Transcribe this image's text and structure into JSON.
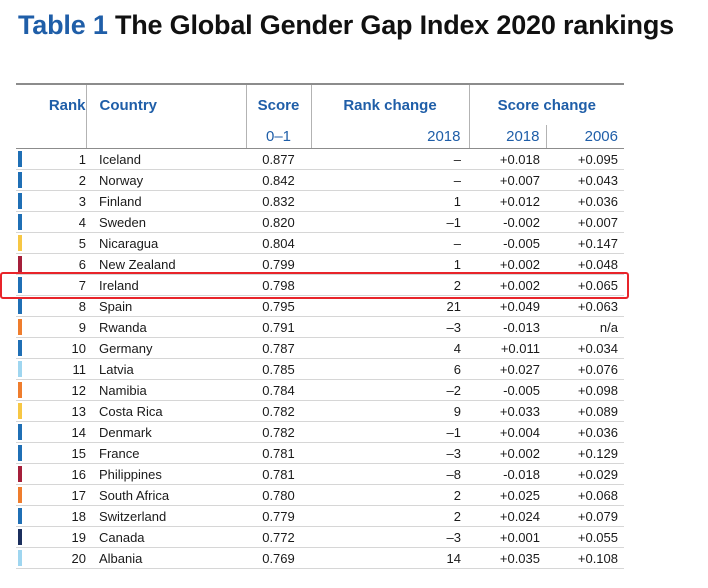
{
  "title": {
    "number": "Table 1",
    "text": "The Global Gender Gap Index 2020 rankings"
  },
  "headers": {
    "rank": "Rank",
    "country": "Country",
    "score": "Score",
    "rank_change": "Rank change",
    "score_change": "Score change",
    "score_sub": "0–1",
    "rank_change_sub": "2018",
    "score_change_sub_1": "2018",
    "score_change_sub_2": "2006"
  },
  "region_colors": {
    "western_europe": "#1f6fb5",
    "latin_america": "#f7c744",
    "east_asia_pacific": "#a51f3a",
    "sub_saharan_africa": "#ef7d2d",
    "eastern_europe_central_asia": "#9fd6f0",
    "north_america": "#1b2f5e"
  },
  "rows": [
    {
      "rank": "1",
      "country": "Iceland",
      "score": "0.877",
      "rank_change": "–",
      "sc2018": "+0.018",
      "sc2006": "+0.095",
      "region": "western_europe"
    },
    {
      "rank": "2",
      "country": "Norway",
      "score": "0.842",
      "rank_change": "–",
      "sc2018": "+0.007",
      "sc2006": "+0.043",
      "region": "western_europe"
    },
    {
      "rank": "3",
      "country": "Finland",
      "score": "0.832",
      "rank_change": "1",
      "sc2018": "+0.012",
      "sc2006": "+0.036",
      "region": "western_europe"
    },
    {
      "rank": "4",
      "country": "Sweden",
      "score": "0.820",
      "rank_change": "–1",
      "sc2018": "-0.002",
      "sc2006": "+0.007",
      "region": "western_europe"
    },
    {
      "rank": "5",
      "country": "Nicaragua",
      "score": "0.804",
      "rank_change": "–",
      "sc2018": "-0.005",
      "sc2006": "+0.147",
      "region": "latin_america"
    },
    {
      "rank": "6",
      "country": "New Zealand",
      "score": "0.799",
      "rank_change": "1",
      "sc2018": "+0.002",
      "sc2006": "+0.048",
      "region": "east_asia_pacific"
    },
    {
      "rank": "7",
      "country": "Ireland",
      "score": "0.798",
      "rank_change": "2",
      "sc2018": "+0.002",
      "sc2006": "+0.065",
      "region": "western_europe"
    },
    {
      "rank": "8",
      "country": "Spain",
      "score": "0.795",
      "rank_change": "21",
      "sc2018": "+0.049",
      "sc2006": "+0.063",
      "region": "western_europe"
    },
    {
      "rank": "9",
      "country": "Rwanda",
      "score": "0.791",
      "rank_change": "–3",
      "sc2018": "-0.013",
      "sc2006": "n/a",
      "region": "sub_saharan_africa"
    },
    {
      "rank": "10",
      "country": "Germany",
      "score": "0.787",
      "rank_change": "4",
      "sc2018": "+0.011",
      "sc2006": "+0.034",
      "region": "western_europe"
    },
    {
      "rank": "11",
      "country": "Latvia",
      "score": "0.785",
      "rank_change": "6",
      "sc2018": "+0.027",
      "sc2006": "+0.076",
      "region": "eastern_europe_central_asia"
    },
    {
      "rank": "12",
      "country": "Namibia",
      "score": "0.784",
      "rank_change": "–2",
      "sc2018": "-0.005",
      "sc2006": "+0.098",
      "region": "sub_saharan_africa"
    },
    {
      "rank": "13",
      "country": "Costa Rica",
      "score": "0.782",
      "rank_change": "9",
      "sc2018": "+0.033",
      "sc2006": "+0.089",
      "region": "latin_america"
    },
    {
      "rank": "14",
      "country": "Denmark",
      "score": "0.782",
      "rank_change": "–1",
      "sc2018": "+0.004",
      "sc2006": "+0.036",
      "region": "western_europe"
    },
    {
      "rank": "15",
      "country": "France",
      "score": "0.781",
      "rank_change": "–3",
      "sc2018": "+0.002",
      "sc2006": "+0.129",
      "region": "western_europe"
    },
    {
      "rank": "16",
      "country": "Philippines",
      "score": "0.781",
      "rank_change": "–8",
      "sc2018": "-0.018",
      "sc2006": "+0.029",
      "region": "east_asia_pacific"
    },
    {
      "rank": "17",
      "country": "South Africa",
      "score": "0.780",
      "rank_change": "2",
      "sc2018": "+0.025",
      "sc2006": "+0.068",
      "region": "sub_saharan_africa"
    },
    {
      "rank": "18",
      "country": "Switzerland",
      "score": "0.779",
      "rank_change": "2",
      "sc2018": "+0.024",
      "sc2006": "+0.079",
      "region": "western_europe"
    },
    {
      "rank": "19",
      "country": "Canada",
      "score": "0.772",
      "rank_change": "–3",
      "sc2018": "+0.001",
      "sc2006": "+0.055",
      "region": "north_america"
    },
    {
      "rank": "20",
      "country": "Albania",
      "score": "0.769",
      "rank_change": "14",
      "sc2018": "+0.035",
      "sc2006": "+0.108",
      "region": "eastern_europe_central_asia"
    }
  ],
  "highlighted_row": "7"
}
